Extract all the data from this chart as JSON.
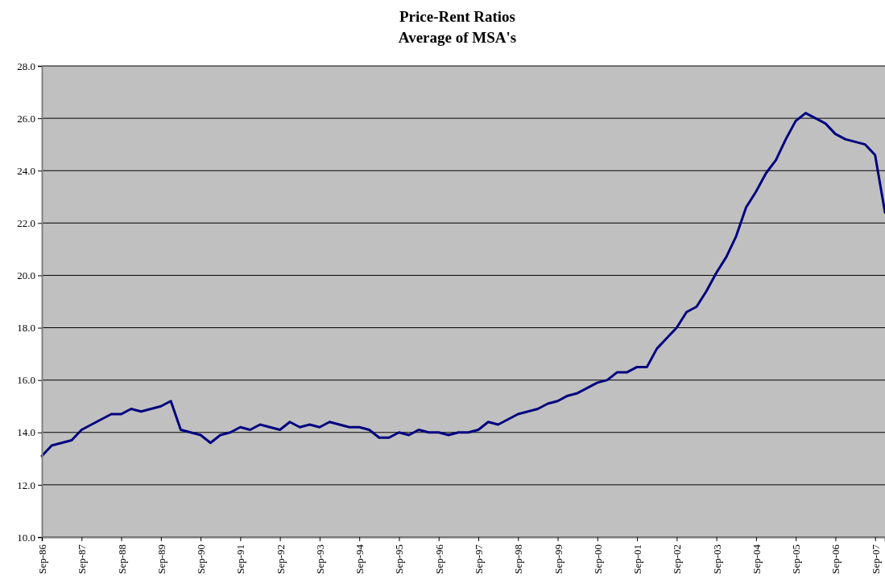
{
  "chart_data": {
    "type": "line",
    "title": "Price-Rent Ratios",
    "subtitle": "Average of MSA's",
    "categories": [
      "Sep-86",
      null,
      null,
      null,
      "Sep-87",
      null,
      null,
      null,
      "Sep-88",
      null,
      null,
      null,
      "Sep-89",
      null,
      null,
      null,
      "Sep-90",
      null,
      null,
      null,
      "Sep-91",
      null,
      null,
      null,
      "Sep-92",
      null,
      null,
      null,
      "Sep-93",
      null,
      null,
      null,
      "Sep-94",
      null,
      null,
      null,
      "Sep-95",
      null,
      null,
      null,
      "Sep-96",
      null,
      null,
      null,
      "Sep-97",
      null,
      null,
      null,
      "Sep-98",
      null,
      null,
      null,
      "Sep-99",
      null,
      null,
      null,
      "Sep-00",
      null,
      null,
      null,
      "Sep-01",
      null,
      null,
      null,
      "Sep-02",
      null,
      null,
      null,
      "Sep-03",
      null,
      null,
      null,
      "Sep-04",
      null,
      null,
      null,
      "Sep-05",
      null,
      null,
      null,
      "Sep-06",
      null,
      null,
      null,
      "Sep-07",
      null
    ],
    "series": [
      {
        "color": "#000080",
        "values": [
          13.1,
          13.5,
          13.6,
          13.7,
          14.1,
          14.3,
          14.5,
          14.7,
          14.7,
          14.9,
          14.8,
          14.9,
          15.0,
          15.2,
          14.1,
          14.0,
          13.9,
          13.6,
          13.9,
          14.0,
          14.2,
          14.1,
          14.3,
          14.2,
          14.1,
          14.4,
          14.2,
          14.3,
          14.2,
          14.4,
          14.3,
          14.2,
          14.2,
          14.1,
          13.8,
          13.8,
          14.0,
          13.9,
          14.1,
          14.0,
          14.0,
          13.9,
          14.0,
          14.0,
          14.1,
          14.4,
          14.3,
          14.5,
          14.7,
          14.8,
          14.9,
          15.1,
          15.2,
          15.4,
          15.5,
          15.7,
          15.9,
          16.0,
          16.3,
          16.3,
          16.5,
          16.5,
          17.2,
          17.6,
          18.0,
          18.6,
          18.8,
          19.4,
          20.1,
          20.7,
          21.5,
          22.6,
          23.2,
          23.9,
          24.4,
          25.2,
          25.9,
          26.2,
          26.0,
          25.8,
          25.4,
          25.2,
          25.1,
          25.0,
          24.6,
          22.4
        ]
      }
    ],
    "ylim": [
      10,
      28
    ],
    "yticks": [
      {
        "value": 10,
        "label": "10.0"
      },
      {
        "value": 12,
        "label": "12.0"
      },
      {
        "value": 14,
        "label": "14.0"
      },
      {
        "value": 16,
        "label": "16.0"
      },
      {
        "value": 18,
        "label": "18.0"
      },
      {
        "value": 20,
        "label": "20.0"
      },
      {
        "value": 22,
        "label": "22.0"
      },
      {
        "value": 24,
        "label": "24.0"
      },
      {
        "value": 26,
        "label": "26.0"
      },
      {
        "value": 28,
        "label": "28.0"
      }
    ],
    "grid": "y",
    "marker": "none",
    "line_style": "solid"
  }
}
